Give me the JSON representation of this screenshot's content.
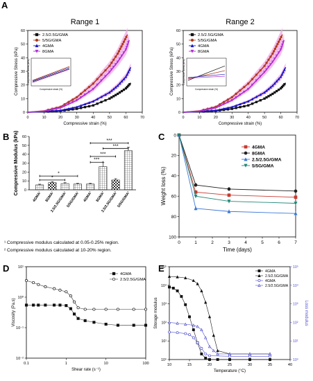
{
  "figure": {
    "panel_letters": [
      "A",
      "B",
      "C",
      "D",
      "E"
    ],
    "colors": {
      "black": "#111111",
      "brown": "#b03a1a",
      "purple": "#b030d0",
      "blue": "#1818c0",
      "shade": "#f0a8e8",
      "c_4gma": "#c83a30",
      "c_8gma": "#202020",
      "c_25": "#3a78d8",
      "c_55": "#208878",
      "e_lossblue": "#5050d0"
    }
  },
  "chart_data": [
    {
      "id": "A1",
      "type": "line",
      "title": "Range 1",
      "xlabel": "Compressive strain (%)",
      "ylabel": "Compressive Stress (kPa)",
      "xlim": [
        0,
        70
      ],
      "ylim": [
        0,
        60
      ],
      "xticks": [
        "0",
        "10",
        "20",
        "30",
        "40",
        "50",
        "60",
        "70"
      ],
      "yticks": [
        "0",
        "10",
        "20",
        "30",
        "40",
        "50",
        "60"
      ],
      "legend_position": "top-left",
      "series": [
        {
          "name": "2.5/2.5G/GMA",
          "color_key": "black",
          "marker": "square",
          "x": [
            0,
            10,
            20,
            30,
            40,
            50,
            55,
            60,
            63
          ],
          "y": [
            0,
            0.3,
            1,
            2.5,
            5,
            10,
            13.5,
            17.5,
            21.5
          ]
        },
        {
          "name": "5/5G/GMA",
          "color_key": "brown",
          "marker": "circle",
          "x": [
            0,
            10,
            20,
            30,
            40,
            50,
            55,
            58,
            61
          ],
          "y": [
            0,
            1,
            4,
            11,
            21,
            34,
            43,
            50,
            57
          ]
        },
        {
          "name": "4GMA",
          "color_key": "blue",
          "marker": "triangle-up",
          "x": [
            0,
            10,
            20,
            30,
            40,
            50,
            55,
            60,
            63
          ],
          "y": [
            0,
            0.4,
            1.3,
            3.8,
            8,
            14.5,
            19.5,
            26,
            33
          ]
        },
        {
          "name": "8GMA",
          "color_key": "purple",
          "marker": "triangle-down",
          "x": [
            0,
            10,
            20,
            30,
            40,
            50,
            55,
            60,
            62
          ],
          "y": [
            0,
            0.8,
            3.2,
            8.8,
            17,
            29.5,
            37,
            46,
            53
          ]
        }
      ],
      "inset": {
        "xlabel": "Compressive strain (%)",
        "ylabel": "Compressive Stress (kPa)"
      }
    },
    {
      "id": "A2",
      "type": "line",
      "title": "Range 2",
      "xlabel": "Compressive strain (%)",
      "ylabel": "Compressive Stress (kPa)",
      "xlim": [
        0,
        70
      ],
      "ylim": [
        0,
        60
      ],
      "xticks": [
        "0",
        "10",
        "20",
        "30",
        "40",
        "50",
        "60",
        "70"
      ],
      "yticks": [
        "0",
        "10",
        "20",
        "30",
        "40",
        "50",
        "60"
      ],
      "legend_position": "top-left",
      "series": [
        {
          "name": "2.5/2.5G/GMA",
          "color_key": "black",
          "marker": "square",
          "x": [
            0,
            10,
            20,
            30,
            40,
            50,
            55,
            60,
            63
          ],
          "y": [
            0,
            0.3,
            1,
            2.5,
            5,
            10,
            13.5,
            17.5,
            21.5
          ]
        },
        {
          "name": "5/5G/GMA",
          "color_key": "brown",
          "marker": "circle",
          "x": [
            0,
            10,
            20,
            30,
            40,
            50,
            55,
            58,
            61
          ],
          "y": [
            0,
            1,
            4,
            11,
            21,
            34,
            43,
            50,
            57
          ]
        },
        {
          "name": "4GMA",
          "color_key": "blue",
          "marker": "triangle-up",
          "x": [
            0,
            10,
            20,
            30,
            40,
            50,
            55,
            60,
            63
          ],
          "y": [
            0,
            0.4,
            1.3,
            3.8,
            8,
            14.5,
            19.5,
            26,
            33
          ]
        },
        {
          "name": "8GMA",
          "color_key": "purple",
          "marker": "triangle-down",
          "x": [
            0,
            10,
            20,
            30,
            40,
            50,
            55,
            60,
            62
          ],
          "y": [
            0,
            0.8,
            3.2,
            8.8,
            17,
            29.5,
            37,
            46,
            53
          ]
        }
      ],
      "inset": {
        "xlabel": "Compressive strain (%)",
        "ylabel": "Compressive Stress (kPa)"
      }
    },
    {
      "id": "B",
      "type": "bar",
      "ylabel": "Compressive Modulus (kPa)",
      "ylim": [
        0,
        60
      ],
      "yticks": [
        "0",
        "10",
        "20",
        "30",
        "40",
        "50",
        "60"
      ],
      "categories": [
        "4GMA¹",
        "8GMA¹",
        "2.5/2.5G/GMA¹",
        "5/5G/GMA¹",
        "4GMA²",
        "8GMA²",
        "2.5/2.5G/GMA²",
        "5/5G/GMA²"
      ],
      "values": [
        5.5,
        8,
        7,
        6.5,
        6.5,
        26,
        11,
        44
      ],
      "errors": [
        0.8,
        1.2,
        1,
        0.8,
        0.8,
        5,
        1.5,
        4
      ],
      "fills": [
        "grid",
        "checker",
        "grid",
        "grid",
        "grid",
        "grid",
        "checker",
        "grid"
      ],
      "significance": [
        "*",
        "*",
        "***",
        "***",
        "***",
        "***"
      ],
      "footnotes": [
        "¹ Compressive modulus calculated at 0.05-0.25% region.",
        "² Compressive modulus calculated at 10-20% region."
      ]
    },
    {
      "id": "C",
      "type": "line",
      "xlabel": "Time (days)",
      "ylabel": "Weight loss (%)",
      "xlim": [
        0,
        7
      ],
      "ylim": [
        0,
        100
      ],
      "y_inverted": true,
      "xticks": [
        "0",
        "1",
        "2",
        "3",
        "4",
        "5",
        "6",
        "7"
      ],
      "yticks": [
        "0",
        "20",
        "40",
        "60",
        "80",
        "100"
      ],
      "legend_position": "top-right",
      "series": [
        {
          "name": "4GMA",
          "color_key": "c_4gma",
          "marker": "square",
          "x": [
            0,
            1,
            3,
            7
          ],
          "y": [
            0,
            56,
            59,
            61
          ]
        },
        {
          "name": "8GMA",
          "color_key": "c_8gma",
          "marker": "circle",
          "x": [
            0,
            1,
            3,
            7
          ],
          "y": [
            0,
            49,
            53,
            55
          ]
        },
        {
          "name": "2.5/2.5G/GMA",
          "color_key": "c_25",
          "marker": "triangle-up",
          "x": [
            0,
            1,
            3,
            7
          ],
          "y": [
            0,
            72,
            75,
            77
          ]
        },
        {
          "name": "5/5G/GMA",
          "color_key": "c_55",
          "marker": "triangle-down",
          "x": [
            0,
            1,
            3,
            7
          ],
          "y": [
            0,
            60,
            65,
            67
          ]
        }
      ]
    },
    {
      "id": "D",
      "type": "line",
      "xlabel": "Shear rate (s⁻¹)",
      "ylabel": "Viscosity (Pa.s)",
      "x_scale": "log",
      "y_scale": "log",
      "xlim": [
        0.1,
        100
      ],
      "ylim": [
        0.01,
        10
      ],
      "xticks": [
        "0.1",
        "1",
        "10",
        "100"
      ],
      "yticks": [
        "10⁻²",
        "10⁻¹",
        "10⁰",
        "10¹"
      ],
      "legend_position": "top-right",
      "series": [
        {
          "name": "4GMA",
          "color_key": "black",
          "marker": "square-filled",
          "x": [
            0.1,
            0.15,
            0.2,
            0.3,
            0.5,
            0.7,
            1,
            1.3,
            1.6,
            2,
            3,
            5,
            10,
            20,
            50,
            100
          ],
          "y": [
            0.55,
            0.55,
            0.55,
            0.55,
            0.55,
            0.55,
            0.53,
            0.42,
            0.28,
            0.2,
            0.17,
            0.15,
            0.13,
            0.12,
            0.12,
            0.12
          ]
        },
        {
          "name": "2.5/2.5G/GMA",
          "color_key": "black",
          "marker": "circle-open",
          "x": [
            0.1,
            0.15,
            0.2,
            0.3,
            0.5,
            0.7,
            1,
            1.3,
            1.6,
            2,
            3,
            5,
            10,
            20,
            50,
            100
          ],
          "y": [
            3.5,
            3.0,
            2.6,
            2.2,
            1.9,
            1.7,
            1.5,
            1.1,
            0.7,
            0.45,
            0.4,
            0.4,
            0.4,
            0.4,
            0.4,
            0.4
          ]
        }
      ]
    },
    {
      "id": "E",
      "type": "line",
      "xlabel": "Temperature (°C)",
      "ylabel": "Storage modulus",
      "ylabel_right": "Loss modulus",
      "xlim": [
        10,
        40
      ],
      "y_scale": "log",
      "ylim": [
        1,
        100000
      ],
      "xticks": [
        "10",
        "15",
        "20",
        "25",
        "30",
        "35",
        "40"
      ],
      "yticks": [
        "10⁰",
        "10¹",
        "10²",
        "10³",
        "10⁴",
        "10⁵"
      ],
      "yticks_right": [
        "10⁰",
        "10¹",
        "10²",
        "10³",
        "10⁴",
        "10⁵"
      ],
      "legend_position": "top-right",
      "series": [
        {
          "name": "4GMA",
          "color_key": "black",
          "marker": "square-filled",
          "x": [
            10,
            11,
            12,
            13,
            14,
            15,
            16,
            17,
            18,
            19,
            20,
            22,
            25,
            30,
            35
          ],
          "y": [
            8000,
            7000,
            5000,
            2500,
            900,
            200,
            40,
            8,
            2,
            1.2,
            1,
            1,
            1,
            1,
            1
          ]
        },
        {
          "name": "2.5/2.5G/GMA",
          "color_key": "black",
          "marker": "triangle-filled",
          "x": [
            10,
            12,
            14,
            16,
            17,
            18,
            19,
            20,
            21,
            22,
            25,
            30,
            35
          ],
          "y": [
            30000,
            28000,
            25000,
            18000,
            12000,
            5000,
            1200,
            200,
            20,
            3,
            2,
            2,
            2
          ]
        },
        {
          "name": "4GMA",
          "color_key": "e_lossblue",
          "marker": "circle-open",
          "x": [
            10,
            12,
            14,
            15,
            16,
            17,
            18,
            19,
            20,
            25,
            30,
            35
          ],
          "y": [
            30,
            28,
            25,
            22,
            15,
            8,
            4,
            2,
            1.6,
            1.5,
            1.5,
            1.5
          ]
        },
        {
          "name": "2.5/2.5G/GMA",
          "color_key": "e_lossblue",
          "marker": "triangle-open",
          "x": [
            10,
            12,
            14,
            16,
            17,
            18,
            19,
            20,
            21,
            22,
            25,
            30,
            35
          ],
          "y": [
            100,
            90,
            80,
            70,
            60,
            40,
            15,
            5,
            3,
            2,
            2,
            2,
            2
          ]
        }
      ]
    }
  ]
}
